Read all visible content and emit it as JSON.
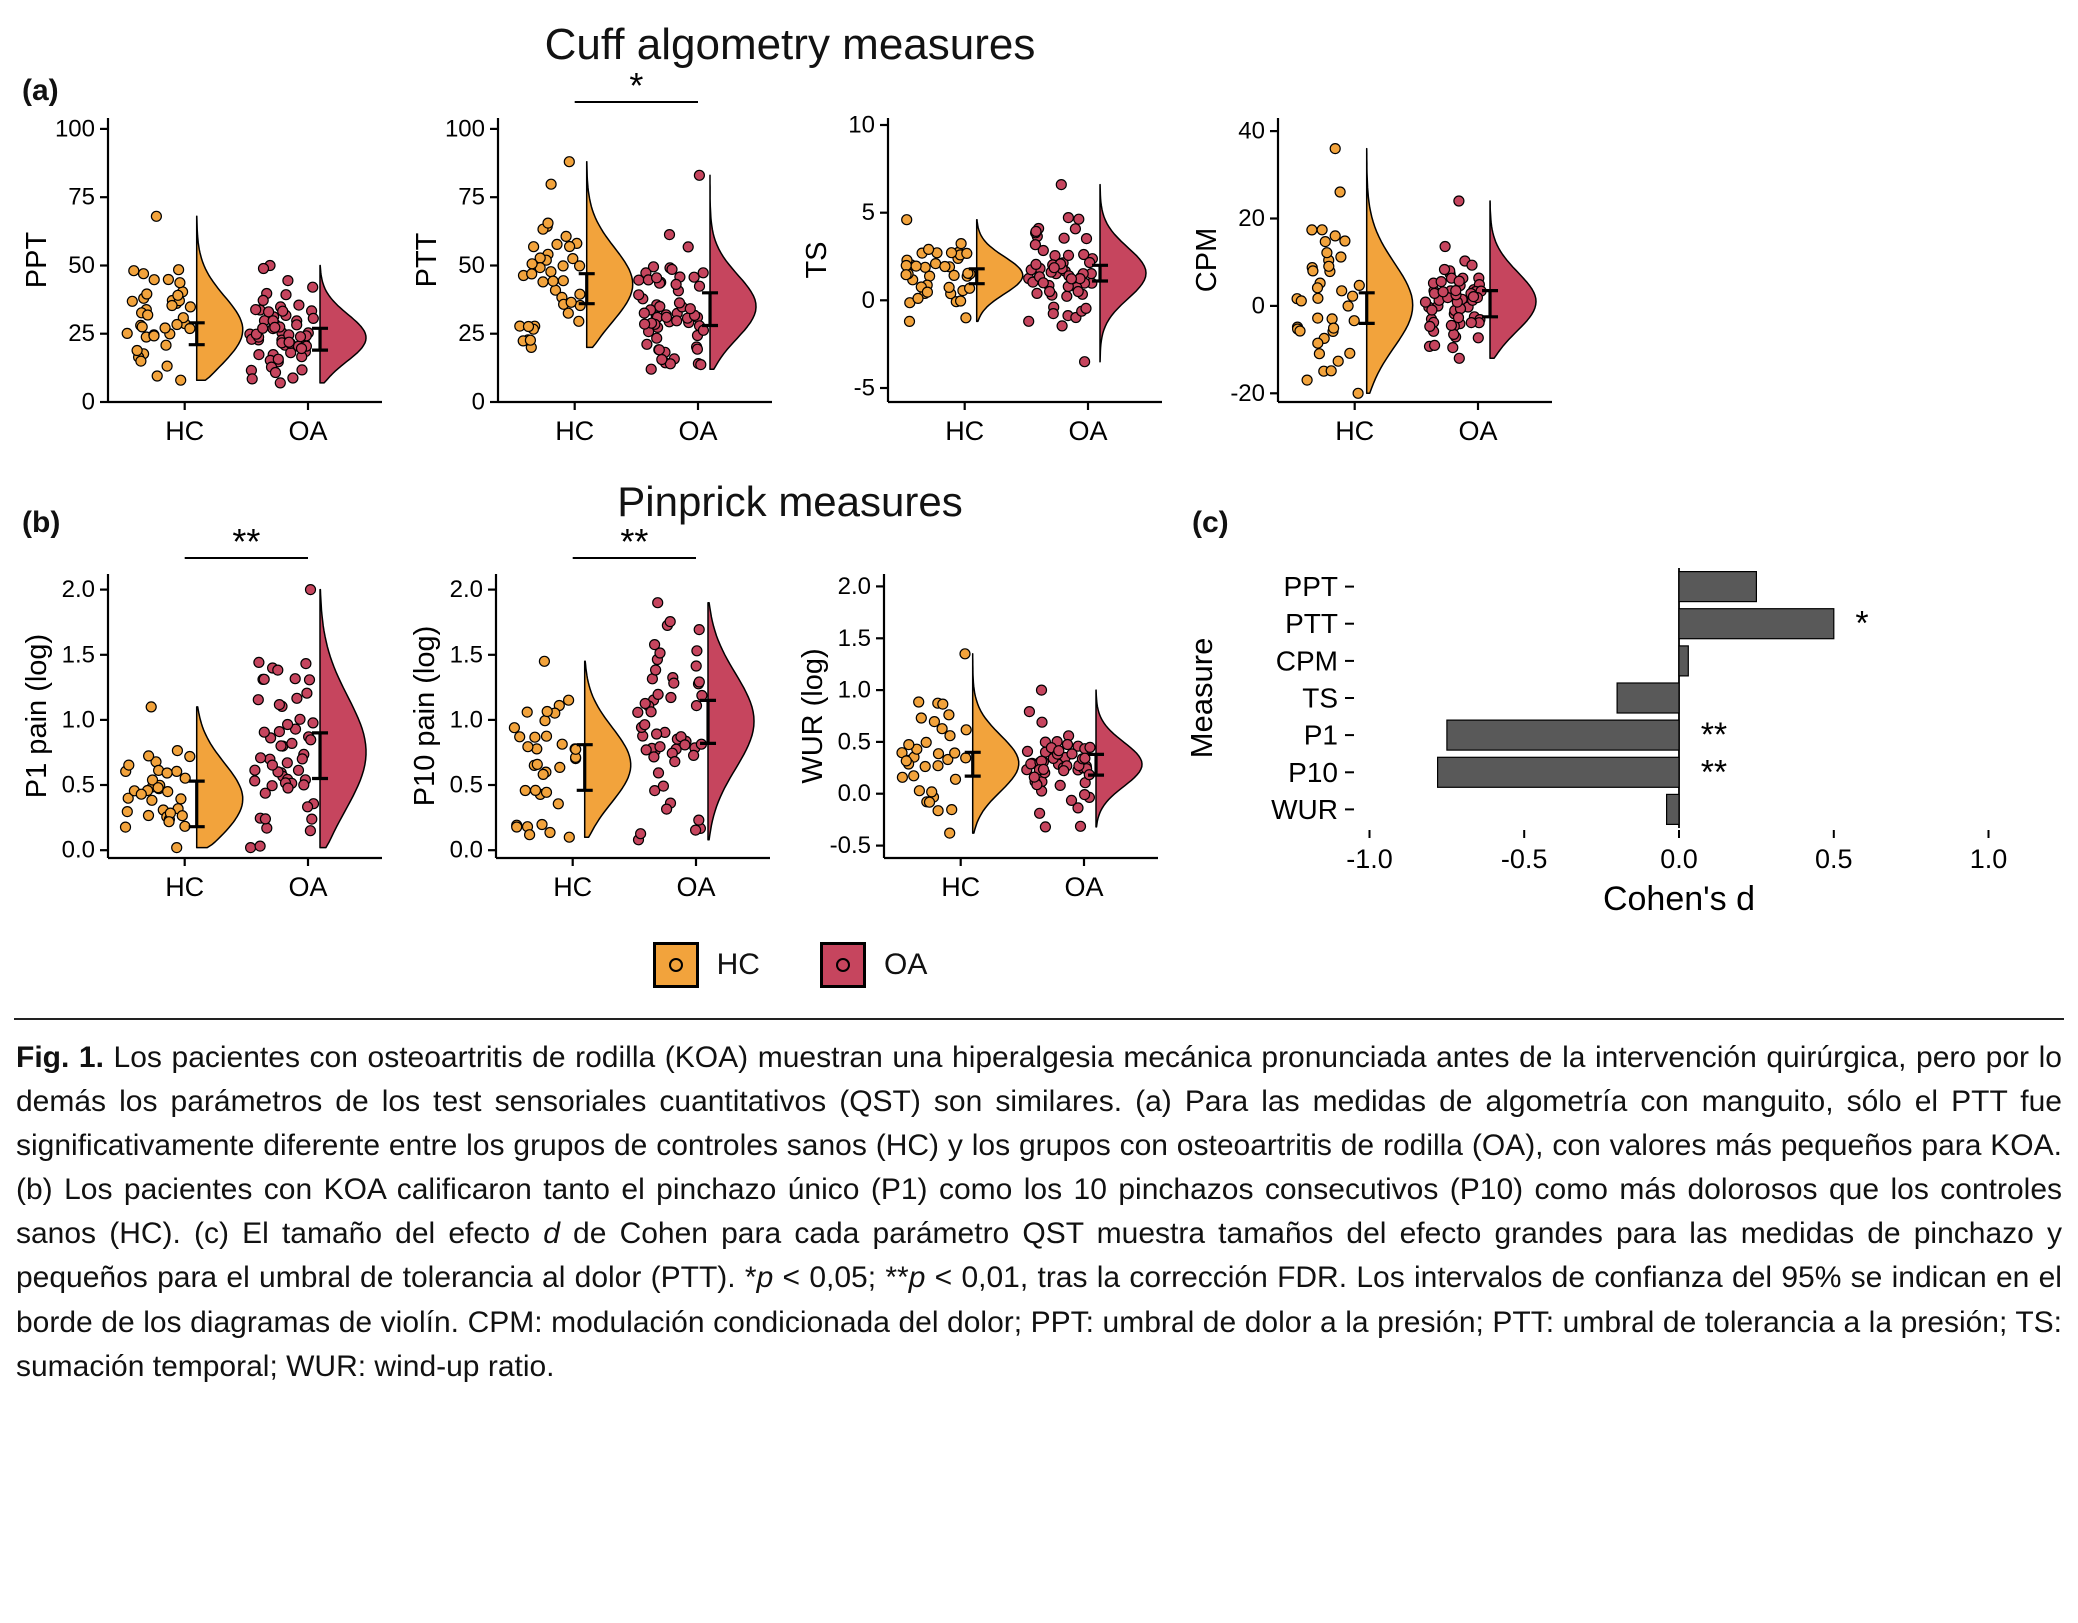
{
  "figure": {
    "title_cuff": "Cuff algometry measures",
    "title_pinprick": "Pinprick measures",
    "panel_labels": {
      "a": "(a)",
      "b": "(b)",
      "c": "(c)"
    },
    "legend": {
      "items": [
        {
          "label": "HC",
          "color": "#F2A33C"
        },
        {
          "label": "OA",
          "color": "#C6455E"
        }
      ]
    },
    "caption": {
      "runs": [
        {
          "text": "Fig. 1.",
          "bold": true
        },
        {
          "text": " Los pacientes con osteoartritis de rodilla (KOA) muestran una hiperalgesia mecánica pronunciada antes de la intervención quirúrgica, pero por lo demás los parámetros de los test sensoriales cuantitativos (QST) son similares. (a) Para las medidas de algometría con manguito, sólo el PTT fue significativamente diferente entre los grupos de controles sanos (HC) y los grupos con osteoartritis de rodilla (OA), con valores más pequeños para KOA. (b) Los pacientes con KOA calificaron tanto el pinchazo único (P1) como los 10 pinchazos consecutivos (P10) como más dolorosos que los controles sanos (HC). (c) El tamaño del efecto ",
          "bold": false
        },
        {
          "text": "d",
          "italic": true
        },
        {
          "text": " de Cohen para cada parámetro QST muestra tamaños del efecto grandes para las medidas de pinchazo y pequeños para el umbral de tolerancia al dolor (PTT). *",
          "italic": false
        },
        {
          "text": "p",
          "italic": true
        },
        {
          "text": " < 0,05; **",
          "italic": false
        },
        {
          "text": "p",
          "italic": true
        },
        {
          "text": " < 0,01, tras la corrección FDR. Los intervalos de confianza del 95% se indican en el borde de los diagramas de violín. CPM: modulación condicionada del dolor; PPT: umbral de dolor a la presión; PTT: umbral de tolerancia a la presión; TS: sumación temporal; WUR: wind-up ratio.",
          "italic": false
        }
      ]
    }
  },
  "colors": {
    "hc": "#F2A33C",
    "oa": "#C6455E",
    "bar_fill": "#595959",
    "axis": "#000000"
  },
  "chart_data": [
    {
      "type": "raincloud",
      "id": "ppt",
      "panel": "a",
      "ylabel": "PPT",
      "ylim": [
        0,
        104
      ],
      "yticks": [
        0,
        25,
        50,
        75,
        100
      ],
      "ytick_labels": [
        "0",
        "25",
        "50",
        "75",
        "100"
      ],
      "categories": [
        "HC",
        "OA"
      ],
      "significance": null,
      "groups": [
        {
          "category": "HC",
          "color_key": "hc",
          "n": 40,
          "mean": 25,
          "sd": 13,
          "ci": [
            21,
            29
          ],
          "range": [
            8,
            68
          ]
        },
        {
          "category": "OA",
          "color_key": "oa",
          "n": 60,
          "mean": 23,
          "sd": 9,
          "ci": [
            19,
            27
          ],
          "range": [
            7,
            50
          ]
        }
      ]
    },
    {
      "type": "raincloud",
      "id": "ptt",
      "panel": "a",
      "ylabel": "PTT",
      "ylim": [
        0,
        104
      ],
      "yticks": [
        0,
        25,
        50,
        75,
        100
      ],
      "ytick_labels": [
        "0",
        "25",
        "50",
        "75",
        "100"
      ],
      "categories": [
        "HC",
        "OA"
      ],
      "significance": "*",
      "groups": [
        {
          "category": "HC",
          "color_key": "hc",
          "n": 40,
          "mean": 42,
          "sd": 14,
          "ci": [
            36,
            47
          ],
          "range": [
            20,
            88
          ]
        },
        {
          "category": "OA",
          "color_key": "oa",
          "n": 60,
          "mean": 34,
          "sd": 12,
          "ci": [
            28,
            40
          ],
          "range": [
            12,
            83
          ]
        }
      ]
    },
    {
      "type": "raincloud",
      "id": "ts",
      "panel": "a",
      "ylabel": "TS",
      "ylim": [
        -5.8,
        10.4
      ],
      "yticks": [
        -5,
        0,
        5,
        10
      ],
      "ytick_labels": [
        "-5",
        "0",
        "5",
        "10"
      ],
      "categories": [
        "HC",
        "OA"
      ],
      "significance": null,
      "groups": [
        {
          "category": "HC",
          "color_key": "hc",
          "n": 40,
          "mean": 1.4,
          "sd": 1.1,
          "ci": [
            0.95,
            1.8
          ],
          "range": [
            -1.2,
            4.6
          ]
        },
        {
          "category": "OA",
          "color_key": "oa",
          "n": 60,
          "mean": 1.55,
          "sd": 1.5,
          "ci": [
            1.1,
            2.0
          ],
          "range": [
            -3.5,
            6.6
          ]
        }
      ]
    },
    {
      "type": "raincloud",
      "id": "cpm",
      "panel": "a",
      "ylabel": "CPM",
      "ylim": [
        -22,
        43
      ],
      "yticks": [
        -20,
        0,
        20,
        40
      ],
      "ytick_labels": [
        "-20",
        "0",
        "20",
        "40"
      ],
      "categories": [
        "HC",
        "OA"
      ],
      "significance": null,
      "groups": [
        {
          "category": "HC",
          "color_key": "hc",
          "n": 40,
          "mean": -0.5,
          "sd": 10,
          "ci": [
            -4,
            3
          ],
          "range": [
            -20,
            36
          ]
        },
        {
          "category": "OA",
          "color_key": "oa",
          "n": 60,
          "mean": 0.5,
          "sd": 7,
          "ci": [
            -2.5,
            3.5
          ],
          "range": [
            -12,
            24
          ]
        }
      ]
    },
    {
      "type": "raincloud",
      "id": "p1",
      "panel": "b",
      "ylabel": "P1 pain (log)",
      "ylim": [
        -0.06,
        2.12
      ],
      "yticks": [
        0.0,
        0.5,
        1.0,
        1.5,
        2.0
      ],
      "ytick_labels": [
        "0.0",
        "0.5",
        "1.0",
        "1.5",
        "2.0"
      ],
      "categories": [
        "HC",
        "OA"
      ],
      "significance": "**",
      "groups": [
        {
          "category": "HC",
          "color_key": "hc",
          "n": 35,
          "mean": 0.36,
          "sd": 0.3,
          "ci": [
            0.18,
            0.53
          ],
          "range": [
            0.02,
            1.1
          ]
        },
        {
          "category": "OA",
          "color_key": "oa",
          "n": 55,
          "mean": 0.72,
          "sd": 0.45,
          "ci": [
            0.55,
            0.9
          ],
          "range": [
            0.02,
            2.0
          ]
        }
      ]
    },
    {
      "type": "raincloud",
      "id": "p10",
      "panel": "b",
      "ylabel": "P10 pain (log)",
      "ylim": [
        -0.06,
        2.12
      ],
      "yticks": [
        0.0,
        0.5,
        1.0,
        1.5,
        2.0
      ],
      "ytick_labels": [
        "0.0",
        "0.5",
        "1.0",
        "1.5",
        "2.0"
      ],
      "categories": [
        "HC",
        "OA"
      ],
      "significance": "**",
      "groups": [
        {
          "category": "HC",
          "color_key": "hc",
          "n": 35,
          "mean": 0.64,
          "sd": 0.3,
          "ci": [
            0.46,
            0.81
          ],
          "range": [
            0.1,
            1.45
          ]
        },
        {
          "category": "OA",
          "color_key": "oa",
          "n": 55,
          "mean": 0.99,
          "sd": 0.38,
          "ci": [
            0.82,
            1.15
          ],
          "range": [
            0.08,
            1.9
          ]
        }
      ]
    },
    {
      "type": "raincloud",
      "id": "wur",
      "panel": "b",
      "ylabel": "WUR (log)",
      "ylim": [
        -0.62,
        2.12
      ],
      "yticks": [
        -0.5,
        0.0,
        0.5,
        1.0,
        1.5,
        2.0
      ],
      "ytick_labels": [
        "-0.5",
        "0.0",
        "0.5",
        "1.0",
        "1.5",
        "2.0"
      ],
      "categories": [
        "HC",
        "OA"
      ],
      "significance": null,
      "groups": [
        {
          "category": "HC",
          "color_key": "hc",
          "n": 35,
          "mean": 0.28,
          "sd": 0.28,
          "ci": [
            0.17,
            0.4
          ],
          "range": [
            -0.38,
            1.35
          ]
        },
        {
          "category": "OA",
          "color_key": "oa",
          "n": 55,
          "mean": 0.28,
          "sd": 0.22,
          "ci": [
            0.18,
            0.38
          ],
          "range": [
            -0.32,
            1.0
          ]
        }
      ]
    },
    {
      "type": "bar",
      "id": "cohens_d",
      "panel": "c",
      "orientation": "horizontal",
      "xlabel": "Cohen's d",
      "ylabel": "Measure",
      "xlim": [
        -1.05,
        1.05
      ],
      "xticks": [
        -1.0,
        -0.5,
        0.0,
        0.5,
        1.0
      ],
      "xtick_labels": [
        "-1.0",
        "-0.5",
        "0.0",
        "0.5",
        "1.0"
      ],
      "categories": [
        "PPT",
        "PTT",
        "CPM",
        "TS",
        "P1",
        "P10",
        "WUR"
      ],
      "values": [
        0.25,
        0.5,
        0.03,
        -0.2,
        -0.75,
        -0.78,
        -0.04
      ],
      "significance": [
        "",
        "*",
        "",
        "",
        "**",
        "**",
        ""
      ]
    }
  ]
}
